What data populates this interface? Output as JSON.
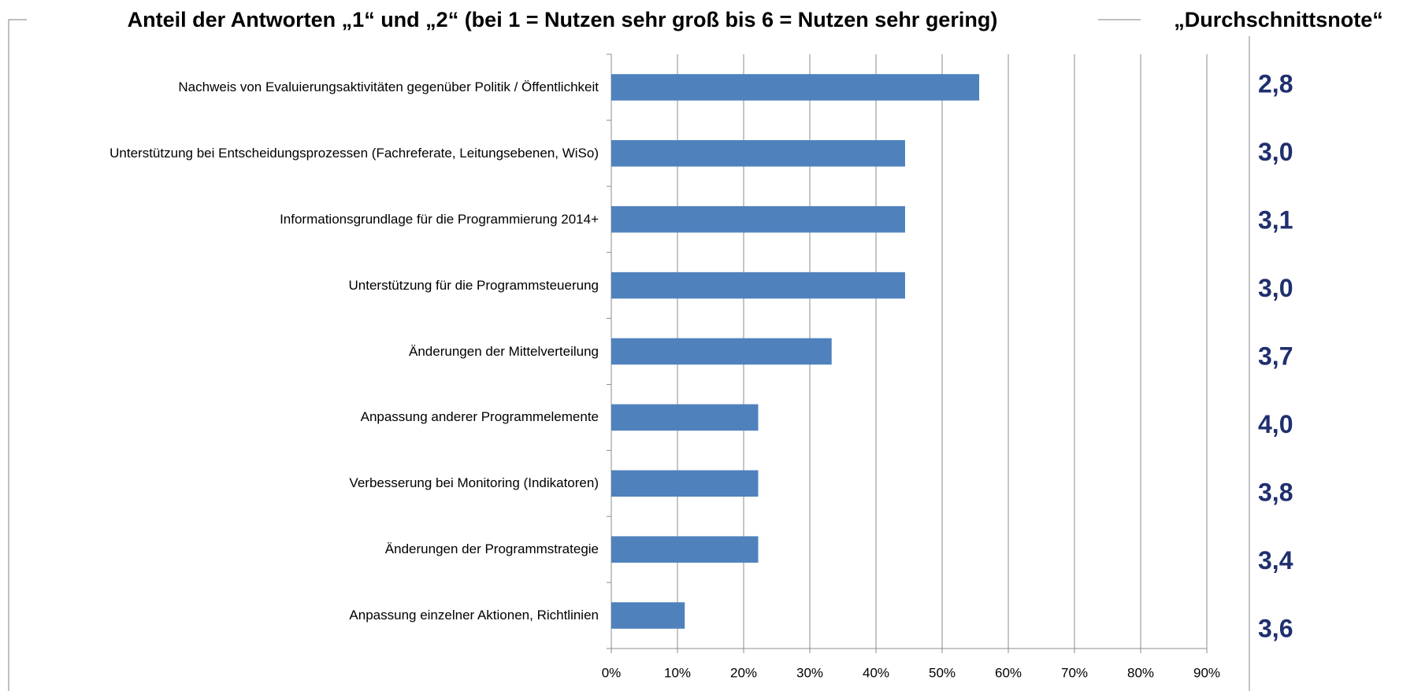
{
  "chart_data": {
    "type": "bar",
    "orientation": "horizontal",
    "title": "Anteil der Antworten „1“ und „2“ (bei 1 = Nutzen sehr groß bis 6 = Nutzen sehr gering)",
    "categories": [
      "Nachweis von Evaluierungsaktivitäten gegenüber Politik / Öffentlichkeit",
      "Unterstützung bei Entscheidungsprozessen (Fachreferate, Leitungsebenen, WiSo)",
      "Informationsgrundlage für die Programmierung 2014+",
      "Unterstützung für die Programmsteuerung",
      "Änderungen der Mittelverteilung",
      "Anpassung anderer Programmelemente",
      "Verbesserung bei Monitoring (Indikatoren)",
      "Änderungen der Programmstrategie",
      "Anpassung einzelner Aktionen, Richtlinien"
    ],
    "values": [
      55.6,
      44.4,
      44.4,
      44.4,
      33.3,
      22.2,
      22.2,
      22.2,
      11.1
    ],
    "color": "#4f81bd",
    "xlim": [
      0,
      90
    ],
    "xticks": [
      {
        "value": 0,
        "label": "0%"
      },
      {
        "value": 10,
        "label": "10%"
      },
      {
        "value": 20,
        "label": "20%"
      },
      {
        "value": 30,
        "label": "30%"
      },
      {
        "value": 40,
        "label": "40%"
      },
      {
        "value": 50,
        "label": "50%"
      },
      {
        "value": 60,
        "label": "60%"
      },
      {
        "value": 70,
        "label": "70%"
      },
      {
        "value": 80,
        "label": "80%"
      },
      {
        "value": 90,
        "label": "90%"
      }
    ],
    "grid": true,
    "average": {
      "title": "„Durchschnittsnote“",
      "values": [
        2.8,
        3.0,
        3.1,
        3.0,
        3.7,
        4.0,
        3.8,
        3.4,
        3.6
      ],
      "value_labels": [
        "2,8",
        "3,0",
        "3,1",
        "3,0",
        "3,7",
        "4,0",
        "3,8",
        "3,4",
        "3,6"
      ],
      "color": "#1f2f6e"
    }
  }
}
